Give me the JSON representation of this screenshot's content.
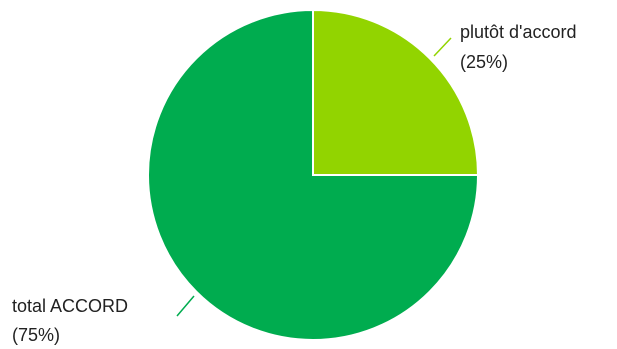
{
  "chart_data": {
    "type": "pie",
    "slices": [
      {
        "label": "plutôt d'accord",
        "percent_label": "(25%)",
        "value": 25,
        "color": "#92d400"
      },
      {
        "label": "total ACCORD",
        "percent_label": "(75%)",
        "value": 75,
        "color": "#00ac4f"
      }
    ]
  }
}
